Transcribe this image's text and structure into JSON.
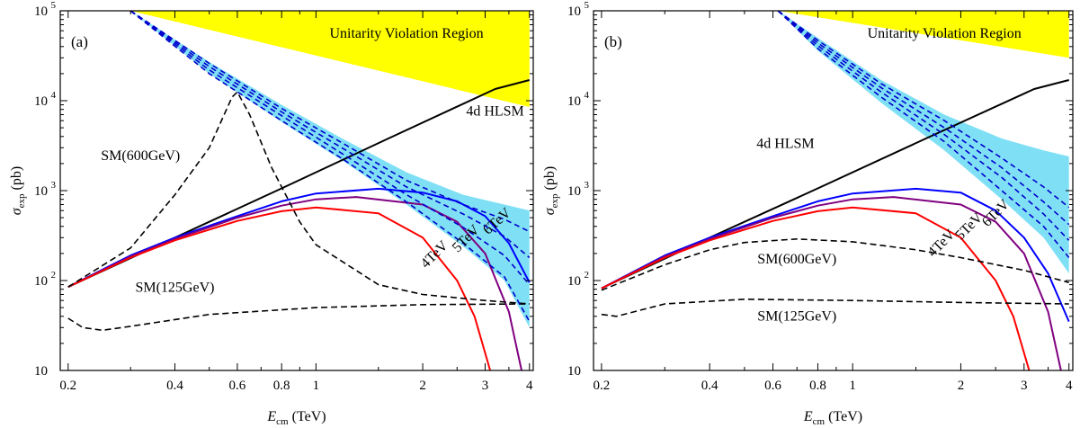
{
  "chart_data": [
    {
      "type": "line",
      "panel_label": "(a)",
      "xlabel": "E",
      "xlabel_sub": "cm",
      "xlabel_unit": " (TeV)",
      "ylabel": "σ",
      "ylabel_sub": "exp",
      "ylabel_unit": " (pb)",
      "xscale": "log",
      "yscale": "log",
      "xlim": [
        0.19,
        4.1
      ],
      "ylim": [
        10,
        100000
      ],
      "x_ticks": [
        0.2,
        0.4,
        0.6,
        0.8,
        1,
        2,
        3,
        4
      ],
      "x_tick_labels": [
        "0.2",
        "0.4",
        "0.6",
        "0.8",
        "1",
        "2",
        "3",
        "4"
      ],
      "y_ticks": [
        10,
        100,
        1000,
        10000,
        100000
      ],
      "y_tick_labels_base": [
        "10",
        "10",
        "10",
        "10",
        "10"
      ],
      "y_tick_labels_exp": [
        "",
        "2",
        "3",
        "4",
        "5"
      ],
      "regions": [
        {
          "label": "Unitarity Violation Region",
          "color": "#ffff00",
          "x": [
            0.3,
            4.0,
            4.0
          ],
          "y_upper": [
            100000,
            100000,
            100000
          ],
          "y_lower": [
            100000,
            8500,
            600
          ]
        },
        {
          "label": "",
          "color": "#7fe0f5",
          "x": [
            0.3,
            0.5,
            0.8,
            1.2,
            1.8,
            2.6,
            3.4,
            4.0
          ],
          "y_upper": [
            100000,
            27000,
            9000,
            3700,
            1600,
            900,
            700,
            600
          ],
          "y_lower": [
            100000,
            20000,
            5800,
            2100,
            700,
            240,
            100,
            30
          ]
        }
      ],
      "series": [
        {
          "name": "4d HLSM",
          "style": "solid",
          "color": "#000000",
          "x": [
            0.2,
            0.4,
            0.8,
            1.6,
            3.2,
            4.0
          ],
          "y": [
            85,
            300,
            1060,
            3800,
            13500,
            17000
          ]
        },
        {
          "name": "6TeV",
          "style": "solid",
          "color": "#0000ff",
          "x": [
            0.2,
            0.3,
            0.4,
            0.6,
            0.8,
            1.0,
            1.5,
            2.0,
            2.5,
            3.0,
            3.5,
            4.0
          ],
          "y": [
            85,
            190,
            300,
            520,
            760,
            930,
            1050,
            950,
            760,
            520,
            260,
            95
          ]
        },
        {
          "name": "5TeV",
          "style": "solid",
          "color": "#800080",
          "x": [
            0.2,
            0.3,
            0.4,
            0.6,
            0.8,
            1.0,
            1.3,
            2.0,
            2.5,
            3.0,
            3.5,
            3.8
          ],
          "y": [
            85,
            185,
            290,
            500,
            680,
            800,
            850,
            700,
            450,
            200,
            45,
            10
          ]
        },
        {
          "name": "4TeV",
          "style": "solid",
          "color": "#ff0000",
          "x": [
            0.2,
            0.3,
            0.4,
            0.6,
            0.8,
            1.0,
            1.5,
            2.0,
            2.5,
            2.8,
            3.1
          ],
          "y": [
            85,
            180,
            280,
            460,
            590,
            650,
            560,
            300,
            100,
            40,
            10
          ]
        },
        {
          "name": "SM(600GeV)",
          "style": "dashed",
          "color": "#000000",
          "x": [
            0.2,
            0.3,
            0.4,
            0.5,
            0.58,
            0.6,
            0.65,
            0.75,
            0.9,
            1.0,
            1.5,
            2.0,
            3.0,
            4.0
          ],
          "y": [
            85,
            230,
            900,
            3000,
            11000,
            12500,
            7000,
            1800,
            450,
            250,
            90,
            70,
            60,
            55
          ]
        },
        {
          "name": "SM(125GeV)",
          "style": "dashed",
          "color": "#000000",
          "x": [
            0.2,
            0.22,
            0.25,
            0.3,
            0.5,
            1.0,
            2.0,
            4.0
          ],
          "y": [
            38,
            30,
            28,
            31,
            42,
            50,
            54,
            55
          ]
        },
        {
          "name": "",
          "style": "dashed",
          "color": "#0000cc",
          "x": [
            0.3,
            0.5,
            0.8,
            1.2,
            1.8,
            2.6,
            3.4,
            4.0
          ],
          "y": [
            100000,
            26000,
            8200,
            3300,
            1300,
            700,
            480,
            350
          ]
        },
        {
          "name": "",
          "style": "dashed",
          "color": "#0000cc",
          "x": [
            0.3,
            0.5,
            0.8,
            1.2,
            1.8,
            2.6,
            3.4,
            4.0
          ],
          "y": [
            100000,
            24000,
            7500,
            2900,
            1100,
            550,
            310,
            180
          ]
        },
        {
          "name": "",
          "style": "dashed",
          "color": "#0000cc",
          "x": [
            0.3,
            0.5,
            0.8,
            1.2,
            1.8,
            2.6,
            3.4,
            4.0
          ],
          "y": [
            100000,
            22000,
            6800,
            2500,
            900,
            390,
            190,
            90
          ]
        },
        {
          "name": "",
          "style": "dashed",
          "color": "#0000cc",
          "x": [
            0.3,
            0.5,
            0.8,
            1.2,
            1.8,
            2.6,
            3.4,
            4.0
          ],
          "y": [
            100000,
            20000,
            6000,
            2200,
            750,
            260,
            110,
            35
          ]
        }
      ],
      "annotations": [
        {
          "text": "Unitarity Violation Region",
          "x": 1.8,
          "y": 50000,
          "rotate": 0
        },
        {
          "text": "4d HLSM",
          "x": 3.2,
          "y": 6800,
          "rotate": 0
        },
        {
          "text": "SM(600GeV)",
          "x": 0.32,
          "y": 2200,
          "rotate": 0
        },
        {
          "text": "SM(125GeV)",
          "x": 0.4,
          "y": 75,
          "rotate": 0
        },
        {
          "text": "6TeV",
          "x": 3.3,
          "y": 420,
          "rotate": -42
        },
        {
          "text": "5TeV",
          "x": 2.7,
          "y": 270,
          "rotate": -45
        },
        {
          "text": "4TeV",
          "x": 2.2,
          "y": 180,
          "rotate": -45
        }
      ]
    },
    {
      "type": "line",
      "panel_label": "(b)",
      "xlabel": "E",
      "xlabel_sub": "cm",
      "xlabel_unit": " (TeV)",
      "ylabel": "σ",
      "ylabel_sub": "exp",
      "ylabel_unit": " (pb)",
      "xscale": "log",
      "yscale": "log",
      "xlim": [
        0.19,
        4.1
      ],
      "ylim": [
        10,
        100000
      ],
      "x_ticks": [
        0.2,
        0.4,
        0.6,
        0.8,
        1,
        2,
        3,
        4
      ],
      "x_tick_labels": [
        "0.2",
        "0.4",
        "0.6",
        "0.8",
        "1",
        "2",
        "3",
        "4"
      ],
      "y_ticks": [
        10,
        100,
        1000,
        10000,
        100000
      ],
      "y_tick_labels_base": [
        "10",
        "10",
        "10",
        "10",
        "10"
      ],
      "y_tick_labels_exp": [
        "",
        "2",
        "3",
        "4",
        "5"
      ],
      "regions": [
        {
          "label": "Unitarity Violation Region",
          "color": "#ffff00",
          "x": [
            0.62,
            4.0,
            4.0
          ],
          "y_upper": [
            100000,
            100000,
            100000
          ],
          "y_lower": [
            100000,
            30000,
            2400
          ]
        },
        {
          "label": "",
          "color": "#7fe0f5",
          "x": [
            0.62,
            0.8,
            1.2,
            1.8,
            2.6,
            3.4,
            4.0
          ],
          "y_upper": [
            100000,
            50000,
            17000,
            7000,
            3800,
            2800,
            2400
          ],
          "y_lower": [
            100000,
            36000,
            9500,
            2800,
            800,
            300,
            120
          ]
        }
      ],
      "series": [
        {
          "name": "4d HLSM",
          "style": "solid",
          "color": "#000000",
          "x": [
            0.2,
            0.4,
            0.8,
            1.6,
            3.2,
            4.0
          ],
          "y": [
            82,
            300,
            1060,
            3800,
            13500,
            17000
          ]
        },
        {
          "name": "6TeV",
          "style": "solid",
          "color": "#0000ff",
          "x": [
            0.2,
            0.3,
            0.4,
            0.6,
            0.8,
            1.0,
            1.5,
            2.0,
            2.5,
            3.0,
            3.5,
            4.0
          ],
          "y": [
            82,
            190,
            300,
            520,
            760,
            930,
            1050,
            950,
            600,
            300,
            120,
            35
          ]
        },
        {
          "name": "5TeV",
          "style": "solid",
          "color": "#800080",
          "x": [
            0.2,
            0.3,
            0.4,
            0.6,
            0.8,
            1.0,
            1.3,
            2.0,
            2.5,
            3.0,
            3.5,
            3.8
          ],
          "y": [
            82,
            185,
            290,
            500,
            680,
            800,
            850,
            700,
            450,
            200,
            45,
            10
          ]
        },
        {
          "name": "4TeV",
          "style": "solid",
          "color": "#ff0000",
          "x": [
            0.2,
            0.3,
            0.4,
            0.6,
            0.8,
            1.0,
            1.5,
            2.0,
            2.5,
            2.8,
            3.1
          ],
          "y": [
            82,
            180,
            280,
            460,
            590,
            650,
            560,
            300,
            100,
            40,
            10
          ]
        },
        {
          "name": "SM(600GeV)",
          "style": "dashed",
          "color": "#000000",
          "x": [
            0.2,
            0.3,
            0.4,
            0.5,
            0.7,
            1.0,
            1.5,
            2.0,
            3.0,
            4.0
          ],
          "y": [
            78,
            150,
            220,
            265,
            290,
            270,
            220,
            180,
            130,
            95
          ]
        },
        {
          "name": "SM(125GeV)",
          "style": "dashed",
          "color": "#000000",
          "x": [
            0.2,
            0.22,
            0.3,
            0.5,
            1.0,
            2.0,
            4.0
          ],
          "y": [
            42,
            40,
            55,
            62,
            60,
            57,
            55
          ]
        },
        {
          "name": "",
          "style": "dashed",
          "color": "#0000cc",
          "x": [
            0.62,
            0.8,
            1.2,
            1.8,
            2.6,
            3.4,
            4.0
          ],
          "y": [
            100000,
            47000,
            15500,
            6000,
            2300,
            1100,
            650
          ]
        },
        {
          "name": "",
          "style": "dashed",
          "color": "#0000cc",
          "x": [
            0.62,
            0.8,
            1.2,
            1.8,
            2.6,
            3.4,
            4.0
          ],
          "y": [
            100000,
            44000,
            14000,
            5000,
            1800,
            750,
            420
          ]
        },
        {
          "name": "",
          "style": "dashed",
          "color": "#0000cc",
          "x": [
            0.62,
            0.8,
            1.2,
            1.8,
            2.6,
            3.4,
            4.0
          ],
          "y": [
            100000,
            41000,
            12500,
            4200,
            1400,
            550,
            280
          ]
        },
        {
          "name": "",
          "style": "dashed",
          "color": "#0000cc",
          "x": [
            0.62,
            0.8,
            1.2,
            1.8,
            2.6,
            3.4,
            4.0
          ],
          "y": [
            100000,
            38000,
            11000,
            3500,
            1000,
            400,
            180
          ]
        }
      ],
      "annotations": [
        {
          "text": "Unitarity Violation Region",
          "x": 1.8,
          "y": 50000,
          "rotate": 0
        },
        {
          "text": "4d HLSM",
          "x": 0.65,
          "y": 3000,
          "rotate": 0
        },
        {
          "text": "SM(600GeV)",
          "x": 0.7,
          "y": 155,
          "rotate": 0
        },
        {
          "text": "SM(125GeV)",
          "x": 0.7,
          "y": 36,
          "rotate": 0
        },
        {
          "text": "6TeV",
          "x": 2.55,
          "y": 520,
          "rotate": -45
        },
        {
          "text": "5TeV",
          "x": 2.15,
          "y": 370,
          "rotate": -45
        },
        {
          "text": "4TeV",
          "x": 1.8,
          "y": 240,
          "rotate": -45
        }
      ]
    }
  ]
}
